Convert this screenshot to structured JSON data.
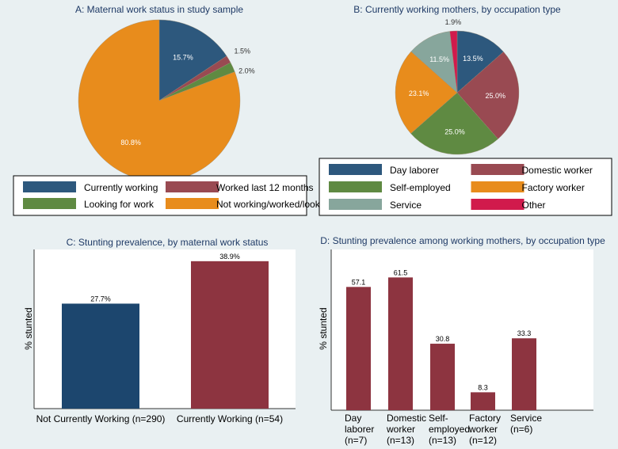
{
  "colors": {
    "blue": "#2d587d",
    "red": "#994a52",
    "green": "#5f8a42",
    "orange": "#e88c1c",
    "teal": "#87a69c",
    "crimson": "#d11a4c",
    "barblue": "#1c466e",
    "barred": "#8d3440",
    "title": "#1f3a66"
  },
  "chart_data": [
    {
      "type": "pie",
      "title": "A:  Maternal work status in study sample",
      "slices": [
        {
          "label": "Currently working",
          "value": 15.7,
          "text": "15.7%",
          "color": "blue"
        },
        {
          "label": "Worked last 12 months",
          "value": 1.5,
          "text": "1.5%",
          "color": "red"
        },
        {
          "label": "Looking for work",
          "value": 2.0,
          "text": "2.0%",
          "color": "green"
        },
        {
          "label": "Not working/worked/looking",
          "value": 80.8,
          "text": "80.8%",
          "color": "orange"
        }
      ]
    },
    {
      "type": "pie",
      "title": "B:  Currently working mothers, by occupation type",
      "slices": [
        {
          "label": "Day laborer",
          "value": 13.5,
          "text": "13.5%",
          "color": "blue"
        },
        {
          "label": "Domestic worker",
          "value": 25.0,
          "text": "25.0%",
          "color": "red"
        },
        {
          "label": "Self-employed",
          "value": 25.0,
          "text": "25.0%",
          "color": "green"
        },
        {
          "label": "Factory worker",
          "value": 23.1,
          "text": "23.1%",
          "color": "orange"
        },
        {
          "label": "Service",
          "value": 11.5,
          "text": "11.5%",
          "color": "teal"
        },
        {
          "label": "Other",
          "value": 1.9,
          "text": "1.9%",
          "color": "crimson"
        }
      ]
    },
    {
      "type": "bar",
      "title": "C:  Stunting prevalence, by maternal work status",
      "ylabel": "% stunted",
      "ylim": [
        0,
        42
      ],
      "categories": [
        "Not Currently Working (n=290)",
        "Currently Working (n=54)"
      ],
      "values": [
        27.7,
        38.9
      ],
      "labels": [
        "27.7%",
        "38.9%"
      ],
      "colors": [
        "barblue",
        "barred"
      ]
    },
    {
      "type": "bar",
      "title": "D:  Stunting prevalence among working mothers, by occupation type",
      "ylabel": "% stunted",
      "ylim": [
        0,
        70
      ],
      "categories": [
        [
          "Day",
          "laborer",
          "(n=7)"
        ],
        [
          "Domestic",
          "worker",
          "(n=13)"
        ],
        [
          "Self-",
          "employed",
          "(n=13)"
        ],
        [
          "Factory",
          "worker",
          "(n=12)"
        ],
        [
          "Service",
          "(n=6)"
        ]
      ],
      "values": [
        57.1,
        61.5,
        30.8,
        8.3,
        33.3
      ],
      "labels": [
        "57.1",
        "61.5",
        "30.8",
        "8.3",
        "33.3"
      ]
    }
  ]
}
